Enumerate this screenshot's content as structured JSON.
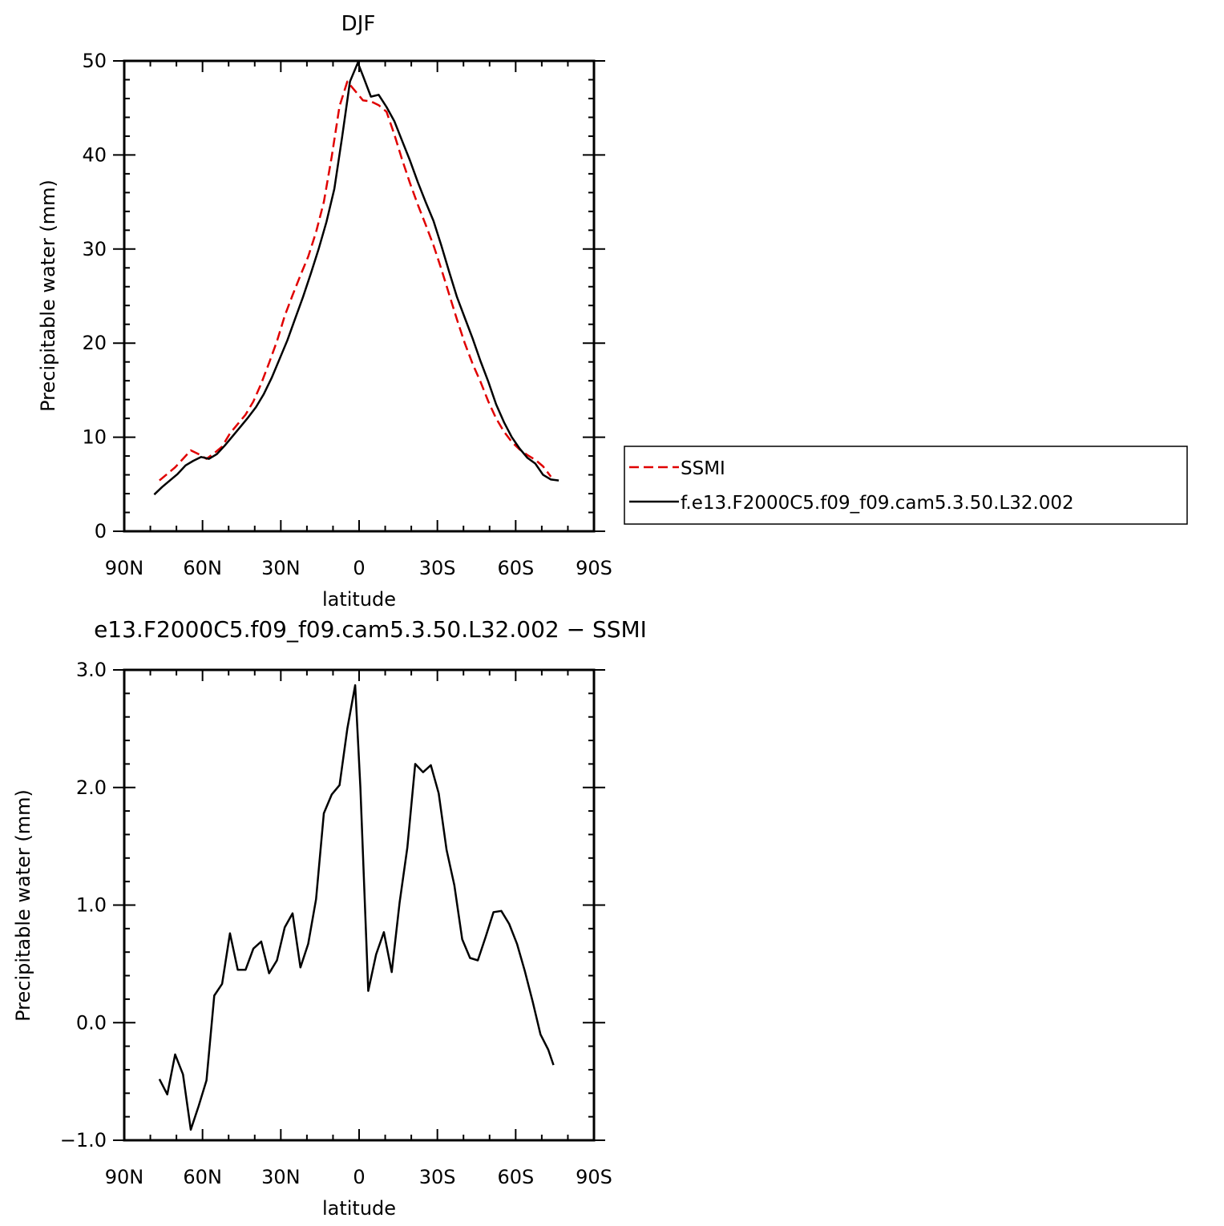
{
  "chart_data": [
    {
      "type": "line",
      "title": "DJF",
      "xlabel": "latitude",
      "ylabel": "Precipitable water (mm)",
      "xlim": [
        -90,
        90
      ],
      "ylim": [
        0,
        50
      ],
      "xticks": [
        {
          "value": -90,
          "label": "90N"
        },
        {
          "value": -60,
          "label": "60N"
        },
        {
          "value": -30,
          "label": "30N"
        },
        {
          "value": 0,
          "label": "0"
        },
        {
          "value": 30,
          "label": "30S"
        },
        {
          "value": 60,
          "label": "60S"
        },
        {
          "value": 90,
          "label": "90S"
        }
      ],
      "yticks": [
        {
          "value": 0,
          "label": "0"
        },
        {
          "value": 10,
          "label": "10"
        },
        {
          "value": 20,
          "label": "20"
        },
        {
          "value": 30,
          "label": "30"
        },
        {
          "value": 40,
          "label": "40"
        },
        {
          "value": 50,
          "label": "50"
        }
      ],
      "legend": "right",
      "series": [
        {
          "name": "SSMI",
          "color": "#e00000",
          "dash": "dashed",
          "x": [
            -76.5,
            -73.5,
            -70.5,
            -67.5,
            -64.5,
            -61.5,
            -58.5,
            -55.5,
            -52.5,
            -49.5,
            -46.5,
            -43.5,
            -40.5,
            -37.5,
            -34.5,
            -31.5,
            -28.5,
            -25.5,
            -22.5,
            -19.5,
            -16.5,
            -13.5,
            -10.5,
            -7.5,
            -4.5,
            -1.5,
            1.5,
            4.5,
            7.5,
            10.5,
            13.5,
            16.5,
            19.5,
            22.5,
            25.5,
            28.5,
            31.5,
            34.5,
            37.5,
            40.5,
            43.5,
            46.5,
            49.5,
            52.5,
            55.5,
            58.5,
            61.5,
            64.5,
            67.5,
            70.5,
            73.5
          ],
          "y": [
            5.4,
            6.1,
            6.8,
            7.7,
            8.6,
            8.2,
            7.7,
            8.3,
            9.0,
            10.4,
            11.4,
            12.4,
            13.8,
            15.7,
            17.9,
            20.2,
            22.9,
            25.1,
            27.2,
            29.2,
            31.8,
            35.0,
            39.8,
            45.2,
            47.8,
            46.8,
            45.8,
            45.7,
            45.3,
            44.6,
            42.2,
            39.5,
            37.0,
            34.7,
            32.6,
            30.4,
            27.9,
            25.2,
            22.5,
            20.0,
            17.8,
            15.9,
            13.8,
            12.0,
            10.6,
            9.5,
            8.7,
            8.1,
            7.6,
            6.9,
            5.8
          ]
        },
        {
          "name": "f.e13.F2000C5.f09_f09.cam5.3.50.L32.002",
          "color": "#000000",
          "dash": "solid",
          "x": [
            -78.5,
            -75.5,
            -72.5,
            -69.5,
            -66.5,
            -63.5,
            -60.5,
            -57.5,
            -54.5,
            -51.5,
            -48.5,
            -45.5,
            -42.5,
            -39.5,
            -36.5,
            -33.5,
            -30.5,
            -27.5,
            -24.5,
            -21.5,
            -18.5,
            -15.5,
            -12.5,
            -9.5,
            -6.5,
            -3.5,
            -0.5,
            1.5,
            4.5,
            7.5,
            10.5,
            13.5,
            16.5,
            19.5,
            22.5,
            25.5,
            28.5,
            31.5,
            34.5,
            37.5,
            40.5,
            43.5,
            46.5,
            49.5,
            52.5,
            55.5,
            58.5,
            61.5,
            64.5,
            67.5,
            70.5,
            73.5,
            76.5
          ],
          "y": [
            3.9,
            4.7,
            5.4,
            6.1,
            7.0,
            7.5,
            7.9,
            7.7,
            8.2,
            9.1,
            10.1,
            11.1,
            12.1,
            13.2,
            14.6,
            16.3,
            18.3,
            20.3,
            22.6,
            24.9,
            27.4,
            30.0,
            32.9,
            36.4,
            41.9,
            47.8,
            49.8,
            48.4,
            46.2,
            46.4,
            45.1,
            43.6,
            41.5,
            39.4,
            37.1,
            35.0,
            33.0,
            30.4,
            27.6,
            24.9,
            22.7,
            20.5,
            18.1,
            15.9,
            13.5,
            11.6,
            10.0,
            8.8,
            7.8,
            7.2,
            6.0,
            5.5,
            5.4
          ]
        }
      ]
    },
    {
      "type": "line",
      "title": "e13.F2000C5.f09_f09.cam5.3.50.L32.002 − SSMI",
      "xlabel": "latitude",
      "ylabel": "Precipitable water (mm)",
      "xlim": [
        -90,
        90
      ],
      "ylim": [
        -1.0,
        3.0
      ],
      "xticks": [
        {
          "value": -90,
          "label": "90N"
        },
        {
          "value": -60,
          "label": "60N"
        },
        {
          "value": -30,
          "label": "30N"
        },
        {
          "value": 0,
          "label": "0"
        },
        {
          "value": 30,
          "label": "30S"
        },
        {
          "value": 60,
          "label": "60S"
        },
        {
          "value": 90,
          "label": "90S"
        }
      ],
      "yticks": [
        {
          "value": -1.0,
          "label": "−1.0"
        },
        {
          "value": 0.0,
          "label": "0.0"
        },
        {
          "value": 1.0,
          "label": "1.0"
        },
        {
          "value": 2.0,
          "label": "2.0"
        },
        {
          "value": 3.0,
          "label": "3.0"
        }
      ],
      "series": [
        {
          "color": "#000000",
          "dash": "solid",
          "x": [
            -76.5,
            -73.5,
            -70.5,
            -67.5,
            -64.5,
            -61.5,
            -58.5,
            -55.5,
            -52.5,
            -49.5,
            -46.5,
            -43.5,
            -40.5,
            -37.5,
            -34.5,
            -31.5,
            -28.5,
            -25.5,
            -22.5,
            -19.5,
            -16.5,
            -13.5,
            -10.5,
            -7.5,
            -4.5,
            -1.5,
            0.5,
            3.5,
            6.5,
            9.5,
            12.5,
            15.5,
            18.5,
            21.5,
            24.5,
            27.5,
            30.5,
            33.5,
            36.5,
            39.5,
            42.5,
            45.5,
            48.5,
            51.5,
            54.5,
            57.5,
            60.5,
            63.5,
            66.5,
            69.5,
            72.5,
            74.5
          ],
          "y": [
            -0.48,
            -0.61,
            -0.27,
            -0.44,
            -0.91,
            -0.71,
            -0.49,
            0.23,
            0.33,
            0.76,
            0.45,
            0.45,
            0.63,
            0.69,
            0.42,
            0.53,
            0.81,
            0.93,
            0.47,
            0.67,
            1.05,
            1.78,
            1.94,
            2.02,
            2.5,
            2.87,
            2.0,
            0.27,
            0.58,
            0.77,
            0.43,
            1.02,
            1.49,
            2.2,
            2.13,
            2.19,
            1.95,
            1.47,
            1.17,
            0.71,
            0.55,
            0.53,
            0.73,
            0.94,
            0.95,
            0.84,
            0.67,
            0.44,
            0.18,
            -0.1,
            -0.23,
            -0.36
          ]
        }
      ]
    }
  ]
}
